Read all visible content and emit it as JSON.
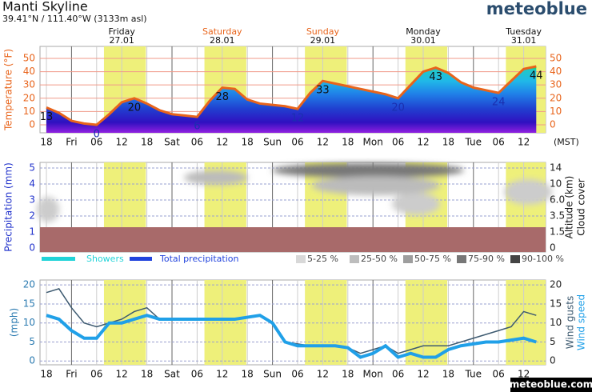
{
  "header": {
    "title": "Manti Skyline",
    "subtitle": "39.41°N / 111.40°W (3133m asl)",
    "logo": "meteoblue"
  },
  "footer": "meteoblue.com",
  "chart_data": [
    {
      "type": "line",
      "y_label": "Temperature (°F)",
      "color": "#e8641b",
      "grid": true,
      "time_zone_label": "(MST)",
      "categories": [
        "18",
        null,
        "Fri",
        null,
        "06",
        null,
        "12",
        null,
        "18",
        null,
        "Sat",
        null,
        "06",
        null,
        "12",
        null,
        "18",
        null,
        "Sun",
        null,
        "06",
        null,
        "12",
        null,
        "18",
        null,
        "Mon",
        null,
        "06",
        null,
        "12",
        null,
        "18",
        null,
        "Tue",
        null,
        "06",
        null,
        "12",
        null
      ],
      "values": [
        13,
        9,
        3,
        1,
        0,
        8,
        17,
        20,
        16,
        11,
        8,
        7,
        6,
        18,
        28,
        27,
        19,
        16,
        15,
        14,
        12,
        24,
        33,
        31,
        29,
        27,
        25,
        23,
        20,
        30,
        40,
        43,
        39,
        32,
        28,
        26,
        24,
        33,
        42,
        44
      ],
      "data_labels": [
        13,
        null,
        null,
        null,
        0,
        null,
        null,
        20,
        null,
        null,
        null,
        null,
        6,
        null,
        28,
        null,
        null,
        null,
        null,
        null,
        12,
        null,
        33,
        null,
        null,
        null,
        null,
        null,
        20,
        null,
        null,
        43,
        null,
        null,
        null,
        null,
        24,
        null,
        null,
        44
      ],
      "ylim": [
        -6,
        59
      ],
      "yticks": [
        0,
        10,
        20,
        30,
        40,
        50
      ],
      "y2ticks": [
        0,
        10,
        20,
        30,
        40,
        50
      ],
      "days": [
        {
          "name": "Friday",
          "date": "27.01",
          "color": "#111111"
        },
        {
          "name": "Saturday",
          "date": "28.01",
          "color": "#e8641b"
        },
        {
          "name": "Sunday",
          "date": "29.01",
          "color": "#e8641b"
        },
        {
          "name": "Monday",
          "date": "30.01",
          "color": "#111111"
        },
        {
          "name": "Tuesday",
          "date": "31.01",
          "color": "#111111"
        }
      ]
    },
    {
      "type": "bar",
      "y_label": "Precipitation (mm)",
      "y2_label": "Altitude (km)",
      "y2_label_2": "Cloud cover",
      "series": [
        {
          "name": "Showers",
          "color": "#22d3d8",
          "values": [
            0,
            0,
            0,
            0,
            0,
            0,
            0,
            0,
            0,
            0,
            0,
            0,
            0,
            0,
            0,
            0,
            0,
            0,
            0,
            0,
            0,
            0,
            0,
            0,
            0,
            0,
            0,
            0,
            0,
            0,
            0,
            0,
            0,
            0,
            0,
            0,
            0,
            0,
            0,
            0
          ]
        },
        {
          "name": "Total precipitation",
          "color": "#2244dd",
          "values": [
            0,
            0,
            0,
            0,
            0,
            0,
            0,
            0,
            0,
            0,
            0,
            0,
            0,
            0,
            0,
            0,
            0,
            0,
            0,
            0,
            0,
            0,
            0,
            0,
            0,
            0,
            0,
            0,
            0,
            0,
            0,
            0,
            0,
            0,
            0,
            0,
            0,
            0,
            0,
            0
          ]
        }
      ],
      "ylim": [
        -0.25,
        5.35
      ],
      "yticks": [
        0,
        1,
        2,
        3,
        4,
        5
      ],
      "y2ticks": [
        0,
        1.5,
        3.5,
        {
          "value": 6,
          "label": "6.0"
        },
        10,
        14
      ],
      "cloud_legend": [
        {
          "label": "5-25 %",
          "color": "#d8d8d8"
        },
        {
          "label": "25-50 %",
          "color": "#bdbdbd"
        },
        {
          "label": "50-75 %",
          "color": "#9e9e9e"
        },
        {
          "label": "75-90 %",
          "color": "#777777"
        },
        {
          "label": "90-100 %",
          "color": "#444444"
        }
      ]
    },
    {
      "type": "line",
      "y_label": "(mph)",
      "categories": [
        "18",
        null,
        "Fri",
        null,
        "06",
        null,
        "12",
        null,
        "18",
        null,
        "Sat",
        null,
        "06",
        null,
        "12",
        null,
        "18",
        null,
        "Sun",
        null,
        "06",
        null,
        "12",
        null,
        "18",
        null,
        "Mon",
        null,
        "06",
        null,
        "12",
        null,
        "18",
        null,
        "Tue",
        null,
        "06",
        null,
        "12",
        null
      ],
      "series": [
        {
          "name": "Wind gusts",
          "color": "#3d5a70",
          "values": [
            18,
            19,
            14,
            10,
            9,
            10,
            11,
            13,
            14,
            11,
            11,
            11,
            11,
            11,
            11,
            11,
            11.5,
            12,
            10,
            5,
            4.5,
            4,
            4,
            4,
            3.5,
            2,
            3,
            4,
            2,
            3,
            4,
            4,
            4,
            5,
            6,
            7,
            8,
            9,
            13,
            12
          ]
        },
        {
          "name": "Wind speed",
          "color": "#20a0e8",
          "values": [
            12,
            11,
            8,
            6,
            6,
            10,
            10,
            11,
            12,
            11,
            11,
            11,
            11,
            11,
            11,
            11,
            11.5,
            12,
            10,
            5,
            4,
            4,
            4,
            4,
            3.5,
            1,
            2,
            4,
            1,
            2,
            1,
            1,
            3,
            4,
            4.5,
            5,
            5,
            5.5,
            6,
            5
          ]
        }
      ],
      "ylim": [
        -1,
        21.3
      ],
      "yticks": [
        0,
        5,
        10,
        15,
        20
      ],
      "y2ticks": [
        0,
        5,
        10,
        15,
        20
      ]
    }
  ]
}
